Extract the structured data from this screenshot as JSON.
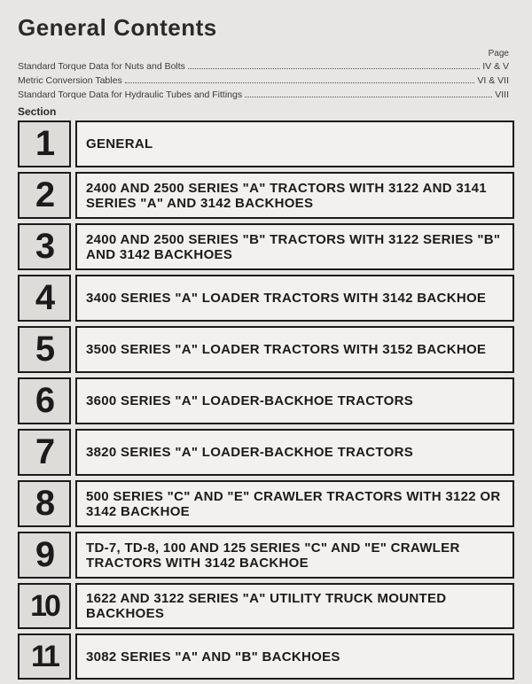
{
  "title": "General Contents",
  "pageLabel": "Page",
  "prelim": [
    {
      "label": "Standard Torque Data for Nuts and Bolts",
      "page": "IV & V"
    },
    {
      "label": "Metric Conversion Tables",
      "page": "VI & VII"
    },
    {
      "label": "Standard Torque Data for Hydraulic Tubes and Fittings",
      "page": "VIII"
    }
  ],
  "sectionLabel": "Section",
  "sections": [
    {
      "num": "1",
      "desc": "GENERAL"
    },
    {
      "num": "2",
      "desc": "2400 AND 2500 SERIES \"A\" TRACTORS WITH 3122 AND 3141 SERIES \"A\" AND 3142 BACKHOES"
    },
    {
      "num": "3",
      "desc": "2400 AND 2500 SERIES \"B\" TRACTORS WITH 3122 SERIES \"B\" AND 3142 BACKHOES"
    },
    {
      "num": "4",
      "desc": "3400 SERIES \"A\" LOADER TRACTORS WITH 3142 BACKHOE"
    },
    {
      "num": "5",
      "desc": "3500 SERIES \"A\" LOADER TRACTORS WITH 3152 BACKHOE"
    },
    {
      "num": "6",
      "desc": "3600 SERIES \"A\" LOADER-BACKHOE TRACTORS"
    },
    {
      "num": "7",
      "desc": "3820 SERIES \"A\" LOADER-BACKHOE TRACTORS"
    },
    {
      "num": "8",
      "desc": "500 SERIES \"C\" AND \"E\" CRAWLER TRACTORS WITH 3122 OR 3142 BACKHOE"
    },
    {
      "num": "9",
      "desc": "TD-7, TD-8, 100 AND 125 SERIES \"C\" AND \"E\" CRAWLER TRACTORS WITH 3142 BACKHOE"
    },
    {
      "num": "10",
      "desc": "1622 AND 3122 SERIES \"A\" UTILITY TRUCK MOUNTED BACKHOES"
    },
    {
      "num": "11",
      "desc": "3082 SERIES \"A\" AND \"B\" BACKHOES"
    }
  ]
}
